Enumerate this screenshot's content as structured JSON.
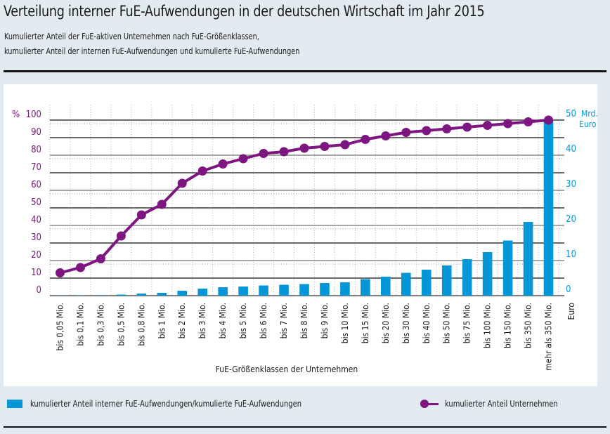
{
  "header": {
    "title": "Verteilung interner FuE-Aufwendungen in der deutschen Wirtschaft im Jahr 2015",
    "subtitle_line1": "Kumulierter Anteil der FuE-aktiven Unternehmen nach FuE-Größenklassen,",
    "subtitle_line2": "kumulierter Anteil der internen FuE-Aufwendungen und kumulierte FuE-Aufwendungen"
  },
  "colors": {
    "bar": "#0596d8",
    "line": "#7d1680",
    "left_axis_text": "#7d1680",
    "right_axis_text": "#0596d8"
  },
  "legend": {
    "bar_label": "kumulierter Anteil interner FuE-Aufwendungen/kumulierte FuE-Aufwendungen",
    "line_label": "kumulierter Anteil Unternehmen"
  },
  "chart_data": {
    "type": "bar",
    "title": "Verteilung interner FuE-Aufwendungen in der deutschen Wirtschaft im Jahr 2015",
    "xlabel": "FuE-Größenklassen der Unternehmen",
    "x_unit_label": "Euro",
    "ylabel_left": "%",
    "ylabel_right": "Mrd. Euro",
    "ylim_left": [
      0,
      100
    ],
    "ylim_right": [
      0,
      50
    ],
    "yticks_left": [
      0,
      10,
      20,
      30,
      40,
      50,
      60,
      70,
      80,
      90,
      100
    ],
    "yticks_right": [
      0,
      10,
      20,
      30,
      40,
      50
    ],
    "right_top_label": "Mrd.\nEuro",
    "grid": true,
    "legend_position": "bottom",
    "categories": [
      "bis 0,05 Mio.",
      "bis 0,1 Mio.",
      "bis 0,3 Mio.",
      "bis 0,5 Mio.",
      "bis 0,8 Mio.",
      "bis 1 Mio.",
      "bis 2 Mio.",
      "bis 3 Mio.",
      "bis 4 Mio.",
      "bis 5 Mio.",
      "bis 6 Mio.",
      "bis 7 Mio.",
      "bis 8 Mio.",
      "bis 9 Mio.",
      "bis 10 Mio.",
      "bis 15 Mio.",
      "bis 20 Mio.",
      "bis 30 Mio.",
      "bis 40 Mio.",
      "bis 50 Mio.",
      "bis 75 Mio.",
      "bis 100 Mio.",
      "bis 150 Mio.",
      "bis 350 Mio.",
      "mehr als 350 Mio."
    ],
    "series": [
      {
        "name": "kumulierter Anteil interner FuE-Aufwendungen/kumulierte FuE-Aufwendungen",
        "type": "bar",
        "axis": "right",
        "unit": "Mrd. Euro",
        "values": [
          0.05,
          0.1,
          0.15,
          0.3,
          0.6,
          0.8,
          1.4,
          2.0,
          2.4,
          2.6,
          2.9,
          3.1,
          3.3,
          3.6,
          3.8,
          4.7,
          5.4,
          6.5,
          7.4,
          8.6,
          10.4,
          12.4,
          15.7,
          21.0,
          50.0
        ]
      },
      {
        "name": "kumulierter Anteil Unternehmen",
        "type": "line",
        "axis": "left",
        "unit": "%",
        "values": [
          13,
          16,
          21,
          34,
          46,
          52,
          64,
          71,
          75,
          78,
          81,
          82,
          84,
          85,
          86,
          89,
          91,
          93,
          94,
          95,
          96,
          97,
          98,
          99,
          100
        ]
      }
    ]
  }
}
